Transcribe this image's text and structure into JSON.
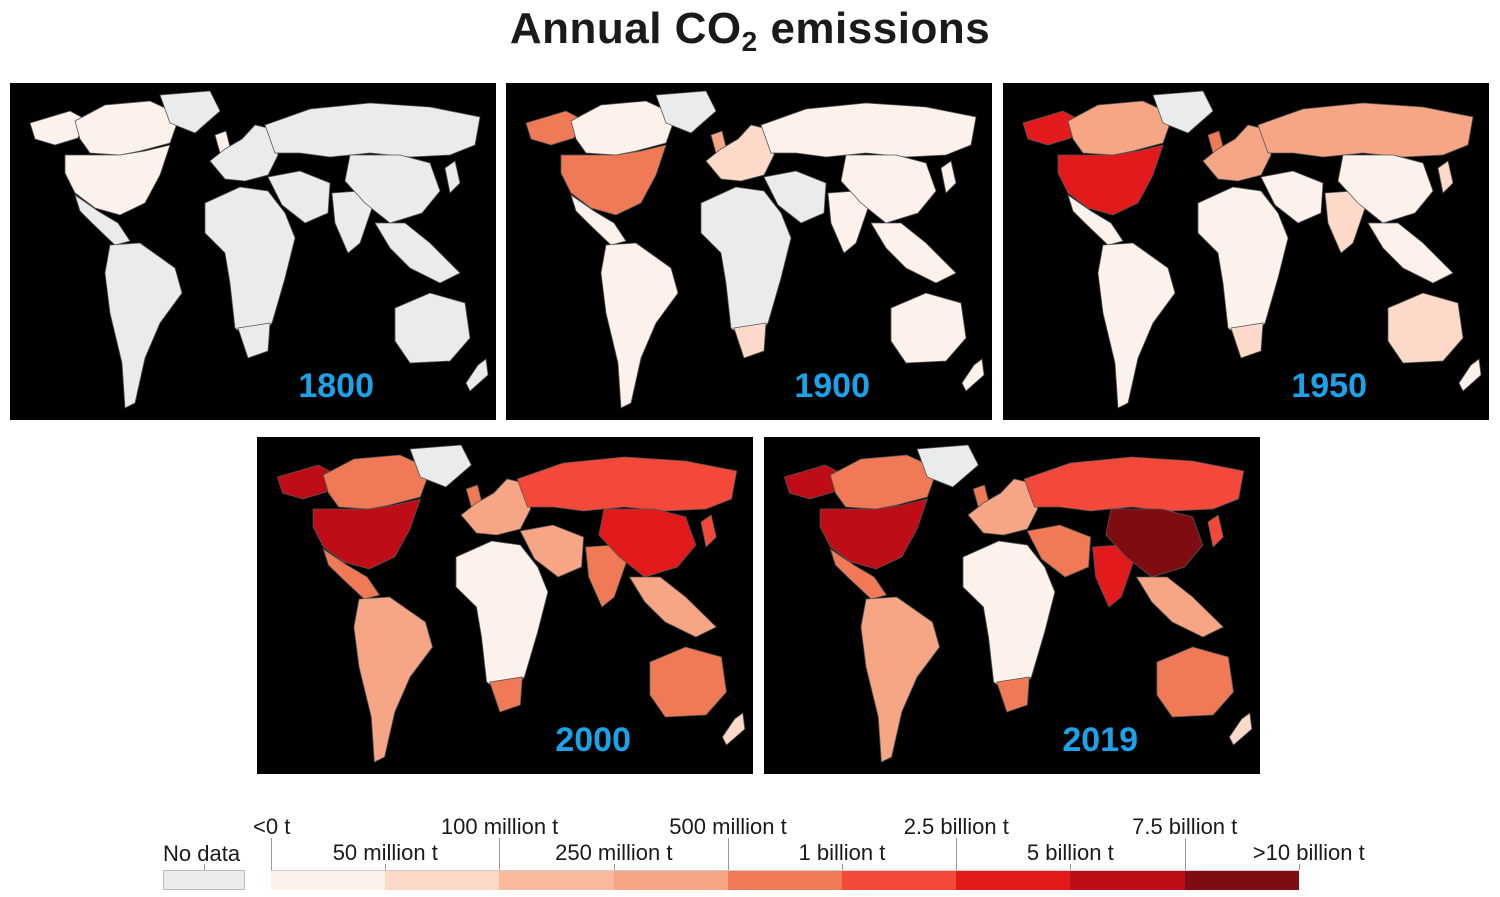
{
  "title": {
    "main": "Annual CO",
    "sub": "2",
    "rest": " emissions"
  },
  "panels": [
    {
      "year": "1800",
      "fills": {
        "northAmerica": "#fdf1ec",
        "canada": "#fdf1ec",
        "alaska": "#fdf1ec",
        "greenland": "#e9ebec",
        "latinAmerica": "#e9ebec",
        "southAmerica": "#e9ebec",
        "europe": "#e9ebec",
        "uk": "#fdf1ec",
        "russia": "#e9ebec",
        "middleEast": "#e9ebec",
        "africa": "#e9ebec",
        "southAfrica": "#e9ebec",
        "china": "#e9ebec",
        "india": "#e9ebec",
        "seAsia": "#e9ebec",
        "japan": "#e9ebec",
        "australia": "#e9ebec",
        "nz": "#e9ebec"
      }
    },
    {
      "year": "1900",
      "fills": {
        "northAmerica": "#f07a55",
        "canada": "#fdf1ec",
        "alaska": "#f07a55",
        "greenland": "#e9ebec",
        "latinAmerica": "#fdf1ec",
        "southAmerica": "#fdf1ec",
        "europe": "#fcd9c9",
        "uk": "#f6a585",
        "russia": "#fdf1ec",
        "middleEast": "#e9ebec",
        "africa": "#e9ebec",
        "southAfrica": "#fcd9c9",
        "china": "#fdf1ec",
        "india": "#fdf1ec",
        "seAsia": "#fdf1ec",
        "japan": "#fdf1ec",
        "australia": "#fdf1ec",
        "nz": "#fdf1ec"
      }
    },
    {
      "year": "1950",
      "fills": {
        "northAmerica": "#e21a1c",
        "canada": "#f6a585",
        "alaska": "#e21a1c",
        "greenland": "#e9ebec",
        "latinAmerica": "#fdf1ec",
        "southAmerica": "#fdf1ec",
        "europe": "#f6a585",
        "uk": "#f07a55",
        "russia": "#f6a585",
        "middleEast": "#fdf1ec",
        "africa": "#fdf1ec",
        "southAfrica": "#fcd9c9",
        "china": "#fdf1ec",
        "india": "#fcd9c9",
        "seAsia": "#fdf1ec",
        "japan": "#fcd9c9",
        "australia": "#fcd9c9",
        "nz": "#fdf1ec"
      }
    },
    {
      "year": "2000",
      "fills": {
        "northAmerica": "#be0d16",
        "canada": "#f07a55",
        "alaska": "#be0d16",
        "greenland": "#e9ebec",
        "latinAmerica": "#f07a55",
        "southAmerica": "#f6a585",
        "europe": "#f6a585",
        "uk": "#f07a55",
        "russia": "#f4493a",
        "middleEast": "#f6a585",
        "africa": "#fdf1ec",
        "southAfrica": "#f07a55",
        "china": "#e21a1c",
        "india": "#f07a55",
        "seAsia": "#f6a585",
        "japan": "#f4493a",
        "australia": "#f07a55",
        "nz": "#fcd9c9"
      }
    },
    {
      "year": "2019",
      "fills": {
        "northAmerica": "#be0d16",
        "canada": "#f07a55",
        "alaska": "#be0d16",
        "greenland": "#e9ebec",
        "latinAmerica": "#f07a55",
        "southAmerica": "#f6a585",
        "europe": "#f6a585",
        "uk": "#f07a55",
        "russia": "#f4493a",
        "middleEast": "#f07a55",
        "africa": "#fdf1ec",
        "southAfrica": "#f07a55",
        "china": "#7f0c10",
        "india": "#e21a1c",
        "seAsia": "#f6a585",
        "japan": "#f4493a",
        "australia": "#f07a55",
        "nz": "#fcd9c9"
      }
    }
  ],
  "legend": {
    "no_data_label": "No data",
    "no_data_color": "#e9ebec",
    "bins": [
      {
        "color": "#fdf1ec"
      },
      {
        "color": "#fcd9c9"
      },
      {
        "color": "#f9b99c"
      },
      {
        "color": "#f6a585"
      },
      {
        "color": "#f07a55"
      },
      {
        "color": "#f4493a"
      },
      {
        "color": "#e21a1c"
      },
      {
        "color": "#be0d16"
      },
      {
        "color": "#7f0c10"
      }
    ],
    "labels_top": [
      "<0 t",
      "100 million t",
      "500 million t",
      "2.5 billion t",
      "7.5 billion t"
    ],
    "labels_bottom": [
      "50 million t",
      "250 million t",
      "1 billion t",
      "5 billion t",
      ">10 billion t"
    ]
  }
}
